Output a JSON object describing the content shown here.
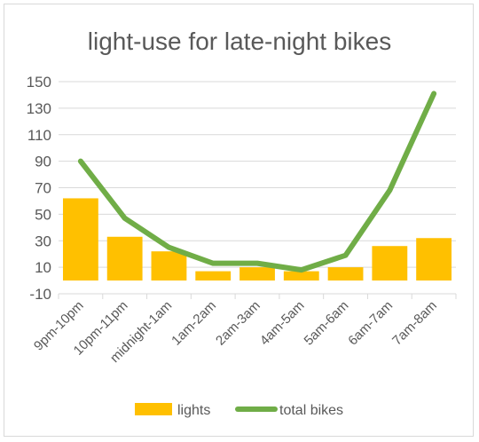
{
  "chart_data": {
    "type": "bar",
    "title": "light-use for late-night bikes",
    "categories": [
      "9pm-10pm",
      "10pm-11pm",
      "midnight-1am",
      "1am-2am",
      "2am-3am",
      "4am-5am",
      "5am-6am",
      "6am-7am",
      "7am-8am"
    ],
    "series": [
      {
        "name": "lights",
        "type": "bar",
        "color": "#ffc000",
        "values": [
          62,
          33,
          22,
          7,
          10,
          7,
          10,
          26,
          32
        ]
      },
      {
        "name": "total bikes",
        "type": "line",
        "color": "#70ad47",
        "values": [
          90,
          47,
          25,
          13,
          13,
          8,
          19,
          68,
          141
        ]
      }
    ],
    "ylim": [
      -10,
      150
    ],
    "yticks": [
      150,
      130,
      110,
      90,
      70,
      50,
      30,
      10,
      -10
    ],
    "grid": true,
    "legend": "bottom"
  }
}
